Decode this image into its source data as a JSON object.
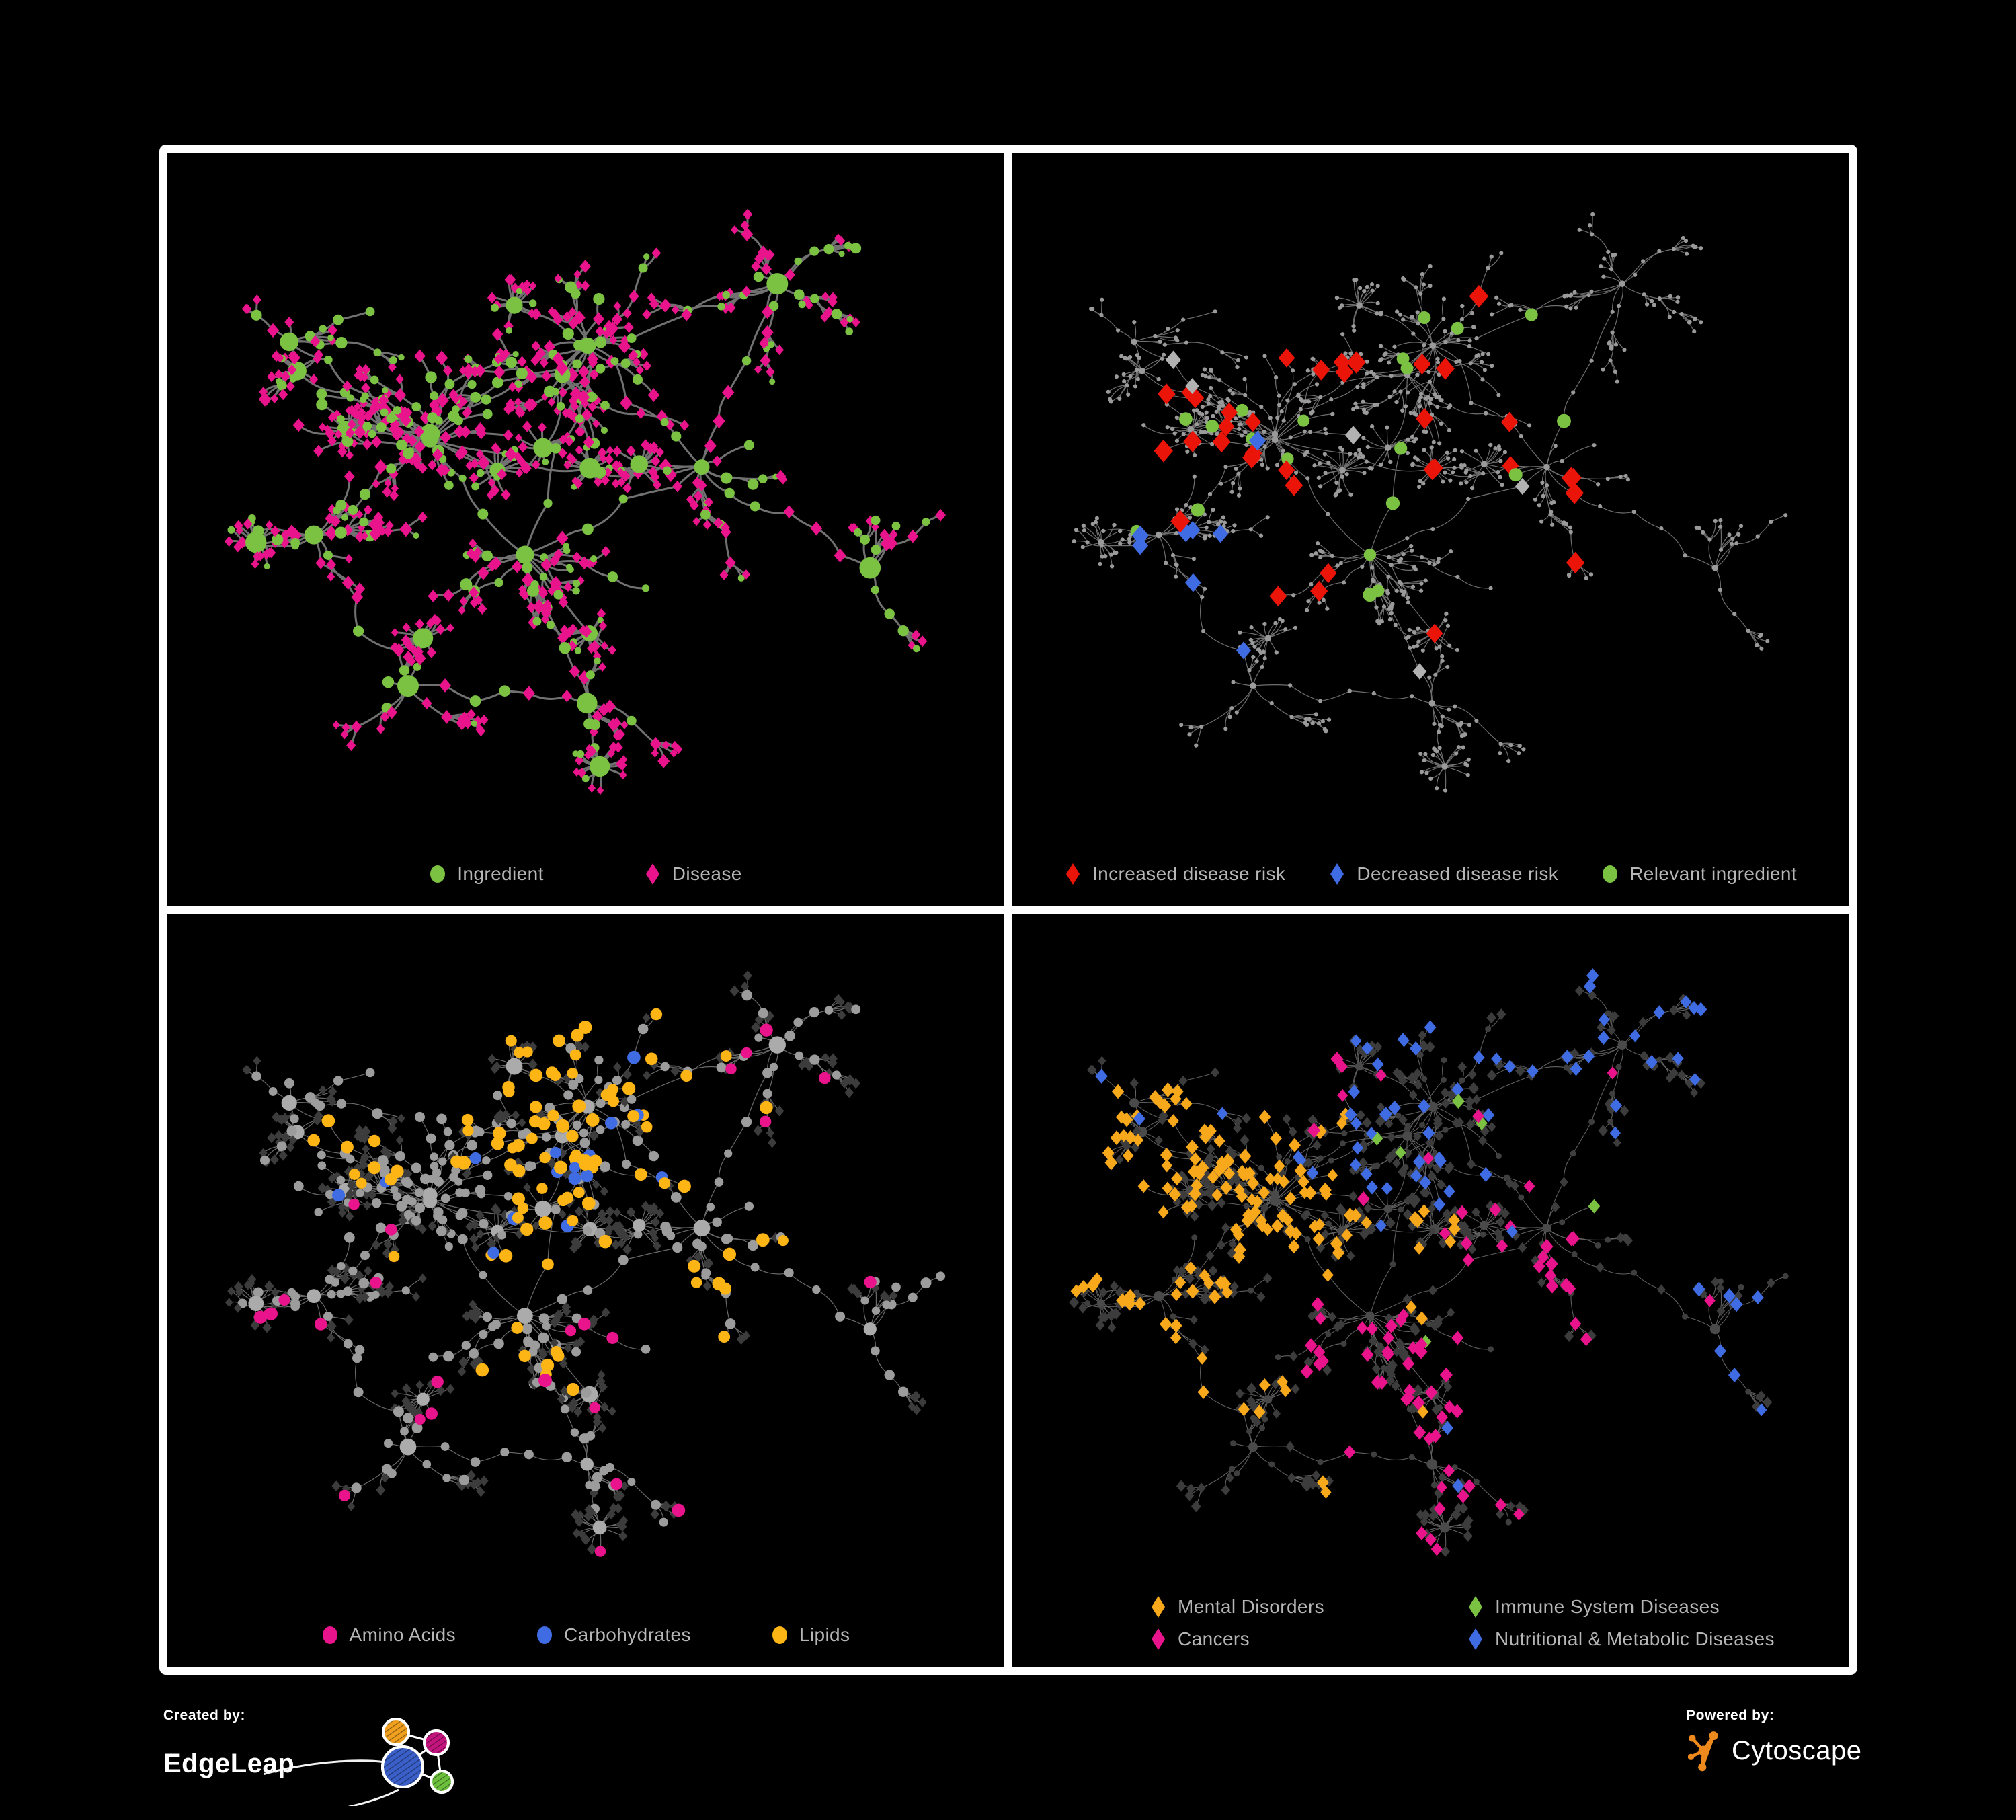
{
  "branding": {
    "created_by_label": "Created by:",
    "created_by_name": "EdgeLeap",
    "powered_by_label": "Powered by:",
    "powered_by_name": "Cytoscape"
  },
  "colors": {
    "green": "#7CC242",
    "pink": "#E9148B",
    "red": "#EA1408",
    "blue": "#3F6BE3",
    "yellow": "#FDB515",
    "orange": "#F7A81B",
    "gray_node": "#9A9A9A",
    "gray_diamond": "#B2B2B2",
    "dark_node": "#3C3C3C",
    "legend_text": "#B6B6B6",
    "panel_background": "#000000",
    "frame_border": "#FFFFFF",
    "cytoscape_orange": "#EE8A1D"
  },
  "panels": [
    {
      "position": "top-left",
      "legend_rows": [
        [
          {
            "label": "Ingredient",
            "shape": "circle",
            "color": "#7CC242"
          },
          {
            "label": "Disease",
            "shape": "diamond",
            "color": "#E9148B"
          }
        ]
      ]
    },
    {
      "position": "top-right",
      "legend_rows": [
        [
          {
            "label": "Increased disease risk",
            "shape": "diamond",
            "color": "#EA1408"
          },
          {
            "label": "Decreased disease risk",
            "shape": "diamond",
            "color": "#3F6BE3"
          },
          {
            "label": "Relevant ingredient",
            "shape": "circle",
            "color": "#7CC242"
          }
        ]
      ]
    },
    {
      "position": "bottom-left",
      "legend_rows": [
        [
          {
            "label": "Amino Acids",
            "shape": "circle",
            "color": "#E9148B"
          },
          {
            "label": "Carbohydrates",
            "shape": "circle",
            "color": "#3F6BE3"
          },
          {
            "label": "Lipids",
            "shape": "circle",
            "color": "#FDB515"
          }
        ]
      ]
    },
    {
      "position": "bottom-right",
      "legend_rows": [
        [
          {
            "label": "Mental Disorders",
            "shape": "diamond",
            "color": "#F7A81B"
          },
          {
            "label": "Immune System Diseases",
            "shape": "diamond",
            "color": "#7CC242"
          }
        ],
        [
          {
            "label": "Cancers",
            "shape": "diamond",
            "color": "#E9148B"
          },
          {
            "label": "Nutritional & Metabolic Diseases",
            "shape": "diamond",
            "color": "#3F6BE3"
          }
        ]
      ]
    }
  ],
  "chart_data": {
    "type": "network",
    "description": "Four styled views of one ingredient-disease association network on black panels with white borders",
    "views": [
      {
        "panel": "top-left",
        "node_categories": [
          {
            "name": "Ingredient",
            "shape": "circle",
            "color": "#7CC242"
          },
          {
            "name": "Disease",
            "shape": "diamond",
            "color": "#E9148B"
          }
        ],
        "edge_color": "#787878"
      },
      {
        "panel": "top-right",
        "node_categories": [
          {
            "name": "Increased disease risk",
            "shape": "diamond",
            "color": "#EA1408"
          },
          {
            "name": "Decreased disease risk",
            "shape": "diamond",
            "color": "#3F6BE3"
          },
          {
            "name": "Relevant ingredient",
            "shape": "circle",
            "color": "#7CC242"
          },
          {
            "name": "Other node",
            "shape": "circle",
            "color": "#9A9A9A"
          },
          {
            "name": "Neutral disease",
            "shape": "diamond",
            "color": "#B2B2B2"
          }
        ],
        "edge_color": "#7C7C7C"
      },
      {
        "panel": "bottom-left",
        "node_categories": [
          {
            "name": "Amino Acids",
            "shape": "circle",
            "color": "#E9148B"
          },
          {
            "name": "Carbohydrates",
            "shape": "circle",
            "color": "#3F6BE3"
          },
          {
            "name": "Lipids",
            "shape": "circle",
            "color": "#FDB515"
          },
          {
            "name": "Other ingredient",
            "shape": "circle",
            "color": "#9C9C9C"
          },
          {
            "name": "Disease",
            "shape": "diamond",
            "color": "#3C3C3C"
          }
        ],
        "edge_color": "#8F8F8F"
      },
      {
        "panel": "bottom-right",
        "node_categories": [
          {
            "name": "Mental Disorders",
            "shape": "diamond",
            "color": "#F7A81B"
          },
          {
            "name": "Immune System Diseases",
            "shape": "diamond",
            "color": "#7CC242"
          },
          {
            "name": "Cancers",
            "shape": "diamond",
            "color": "#E9148B"
          },
          {
            "name": "Nutritional & Metabolic Diseases",
            "shape": "diamond",
            "color": "#3F6BE3"
          },
          {
            "name": "Other node",
            "shape": "diamond",
            "color": "#3C3C3C"
          }
        ],
        "edge_color": "#8C8C8C"
      }
    ]
  }
}
